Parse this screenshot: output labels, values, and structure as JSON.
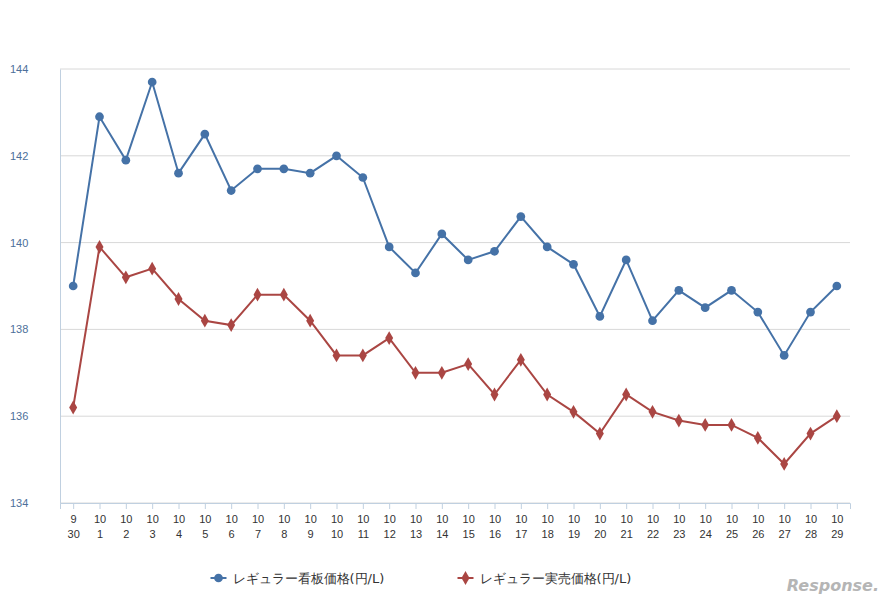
{
  "chart_data": {
    "type": "line",
    "categories": [
      "9\n30",
      "10\n1",
      "10\n2",
      "10\n3",
      "10\n4",
      "10\n5",
      "10\n6",
      "10\n7",
      "10\n8",
      "10\n9",
      "10\n10",
      "10\n11",
      "10\n12",
      "10\n13",
      "10\n14",
      "10\n15",
      "10\n16",
      "10\n17",
      "10\n18",
      "10\n19",
      "10\n20",
      "10\n21",
      "10\n22",
      "10\n23",
      "10\n24",
      "10\n25",
      "10\n26",
      "10\n27",
      "10\n28",
      "10\n29"
    ],
    "series": [
      {
        "name": "レギュラー看板価格(円/L)",
        "color": "#4572a7",
        "marker": "circle",
        "values": [
          139.0,
          142.9,
          141.9,
          143.7,
          141.6,
          142.5,
          141.2,
          141.7,
          141.7,
          141.6,
          142.0,
          141.5,
          139.9,
          139.3,
          140.2,
          139.6,
          139.8,
          140.6,
          139.9,
          139.5,
          138.3,
          139.6,
          138.2,
          138.9,
          138.5,
          138.9,
          138.4,
          137.4,
          138.4,
          139.0
        ]
      },
      {
        "name": "レギュラー実売価格(円/L)",
        "color": "#aa4643",
        "marker": "diamond",
        "values": [
          136.2,
          139.9,
          139.2,
          139.4,
          138.7,
          138.2,
          138.1,
          138.8,
          138.8,
          138.2,
          137.4,
          137.4,
          137.8,
          137.0,
          137.0,
          137.2,
          136.5,
          137.3,
          136.5,
          136.1,
          135.6,
          136.5,
          136.1,
          135.9,
          135.8,
          135.8,
          135.5,
          134.9,
          135.6,
          136.0
        ]
      }
    ],
    "ylim": [
      134,
      144
    ],
    "yticks": [
      134,
      136,
      138,
      140,
      142,
      144
    ],
    "grid": true,
    "legend": "bottom",
    "annotations": [
      "Response."
    ]
  }
}
